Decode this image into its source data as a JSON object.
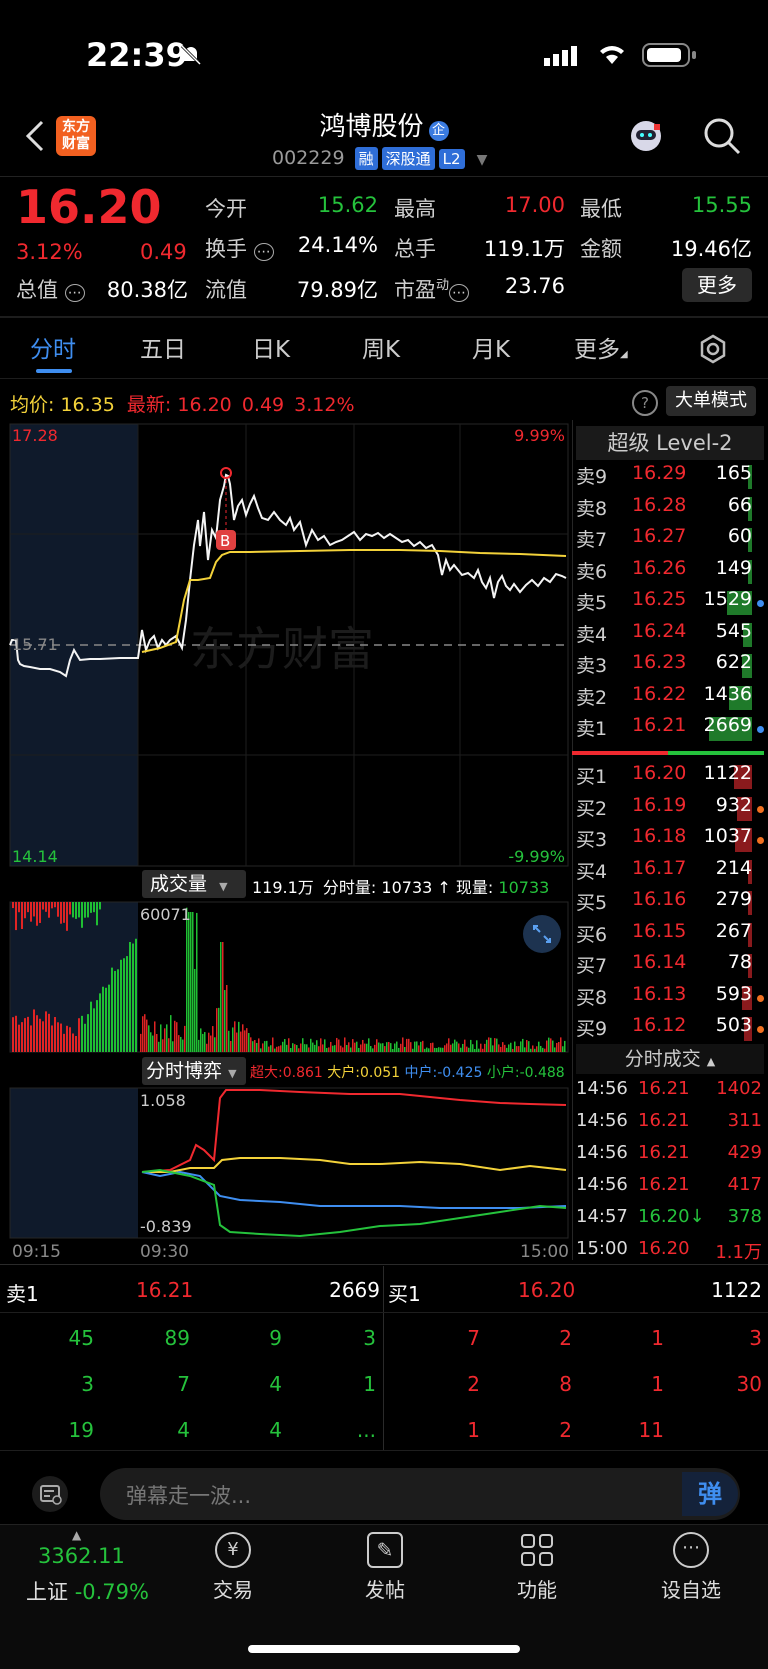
{
  "status": {
    "time": "22:39"
  },
  "header": {
    "logo_line1": "东方",
    "logo_line2": "财富",
    "stock_name": "鸿博股份",
    "stock_code": "002229",
    "tags": [
      "融",
      "深股通",
      "L2"
    ],
    "badge": "企"
  },
  "quote": {
    "price": "16.20",
    "change_pct": "3.12%",
    "change": "0.49",
    "open_label": "今开",
    "open": "15.62",
    "high_label": "最高",
    "high": "17.00",
    "low_label": "最低",
    "low": "15.55",
    "turnover_label": "换手",
    "turnover": "24.14%",
    "volume_label": "总手",
    "volume": "119.1万",
    "amount_label": "金额",
    "amount": "19.46亿",
    "mktcap_label": "总值",
    "mktcap": "80.38亿",
    "float_label": "流值",
    "float": "79.89亿",
    "pe_label": "市盈",
    "pe_sup": "动",
    "pe": "23.76",
    "more_button": "更多"
  },
  "tabs": [
    "分时",
    "五日",
    "日K",
    "周K",
    "月K",
    "更多"
  ],
  "chart_bar": {
    "avg_label": "均价:",
    "avg": "16.35",
    "latest_label": "最新:",
    "latest": "16.20",
    "latest_chg": "0.49",
    "latest_pct": "3.12%",
    "big_order_button": "大单模式"
  },
  "price_axis": {
    "top": "17.28",
    "mid": "15.71",
    "bottom": "14.14",
    "top_pct": "9.99%",
    "bottom_pct": "-9.99%"
  },
  "watermark": "东方财富",
  "volume_bar": {
    "label": "成交量",
    "total": "119.1万",
    "minute_label": "分时量:",
    "minute": "10733",
    "now_label": "现量:",
    "now": "10733",
    "axis_max": "60071"
  },
  "game_bar": {
    "label": "分时博弈",
    "super_label": "超大:",
    "super": "0.861",
    "big_label": "大户:",
    "big": "0.051",
    "mid_label": "中户:",
    "mid": "-0.425",
    "small_label": "小户:",
    "small": "-0.488",
    "axis_top": "1.058",
    "axis_bottom": "-0.839"
  },
  "time_axis": {
    "start": "09:15",
    "open": "09:30",
    "end": "15:00"
  },
  "orderbook": {
    "title": "超级 Level-2",
    "asks": [
      {
        "label": "卖9",
        "price": "16.29",
        "qty": "165"
      },
      {
        "label": "卖8",
        "price": "16.28",
        "qty": "66"
      },
      {
        "label": "卖7",
        "price": "16.27",
        "qty": "60"
      },
      {
        "label": "卖6",
        "price": "16.26",
        "qty": "149"
      },
      {
        "label": "卖5",
        "price": "16.25",
        "qty": "1529"
      },
      {
        "label": "卖4",
        "price": "16.24",
        "qty": "545"
      },
      {
        "label": "卖3",
        "price": "16.23",
        "qty": "622"
      },
      {
        "label": "卖2",
        "price": "16.22",
        "qty": "1436"
      },
      {
        "label": "卖1",
        "price": "16.21",
        "qty": "2669"
      }
    ],
    "bids": [
      {
        "label": "买1",
        "price": "16.20",
        "qty": "1122"
      },
      {
        "label": "买2",
        "price": "16.19",
        "qty": "932"
      },
      {
        "label": "买3",
        "price": "16.18",
        "qty": "1037"
      },
      {
        "label": "买4",
        "price": "16.17",
        "qty": "214"
      },
      {
        "label": "买5",
        "price": "16.16",
        "qty": "279"
      },
      {
        "label": "买6",
        "price": "16.15",
        "qty": "267"
      },
      {
        "label": "买7",
        "price": "16.14",
        "qty": "78"
      },
      {
        "label": "买8",
        "price": "16.13",
        "qty": "593"
      },
      {
        "label": "买9",
        "price": "16.12",
        "qty": "503"
      }
    ]
  },
  "trades": {
    "title": "分时成交",
    "rows": [
      {
        "time": "14:56",
        "price": "16.21",
        "qty": "1402"
      },
      {
        "time": "14:56",
        "price": "16.21",
        "qty": "311"
      },
      {
        "time": "14:56",
        "price": "16.21",
        "qty": "429"
      },
      {
        "time": "14:56",
        "price": "16.21",
        "qty": "417"
      },
      {
        "time": "14:57",
        "price": "16.20↓",
        "qty": "378"
      },
      {
        "time": "15:00",
        "price": "16.20",
        "qty": "1.1万"
      }
    ]
  },
  "queue": {
    "sell_label": "卖1",
    "sell_price": "16.21",
    "sell_qty": "2669",
    "buy_label": "买1",
    "buy_price": "16.20",
    "buy_qty": "1122",
    "sell_cells": [
      [
        "45",
        "89",
        "9",
        "3"
      ],
      [
        "3",
        "7",
        "4",
        "1"
      ],
      [
        "19",
        "4",
        "4",
        "..."
      ]
    ],
    "buy_cells": [
      [
        "7",
        "2",
        "1",
        "3"
      ],
      [
        "2",
        "8",
        "1",
        "30"
      ],
      [
        "1",
        "2",
        "11",
        ""
      ]
    ]
  },
  "danmaku": {
    "placeholder": "弹幕走一波...",
    "button": "弹"
  },
  "bottom_nav": {
    "index_value": "3362.11",
    "index_name": "上证",
    "index_chg": "-0.79%",
    "items": [
      "交易",
      "发帖",
      "功能",
      "设自选"
    ]
  },
  "colors": {
    "up": "#f0292f",
    "down": "#25c23c",
    "avg_line": "#f3d23a",
    "accent": "#2f6ed8"
  }
}
